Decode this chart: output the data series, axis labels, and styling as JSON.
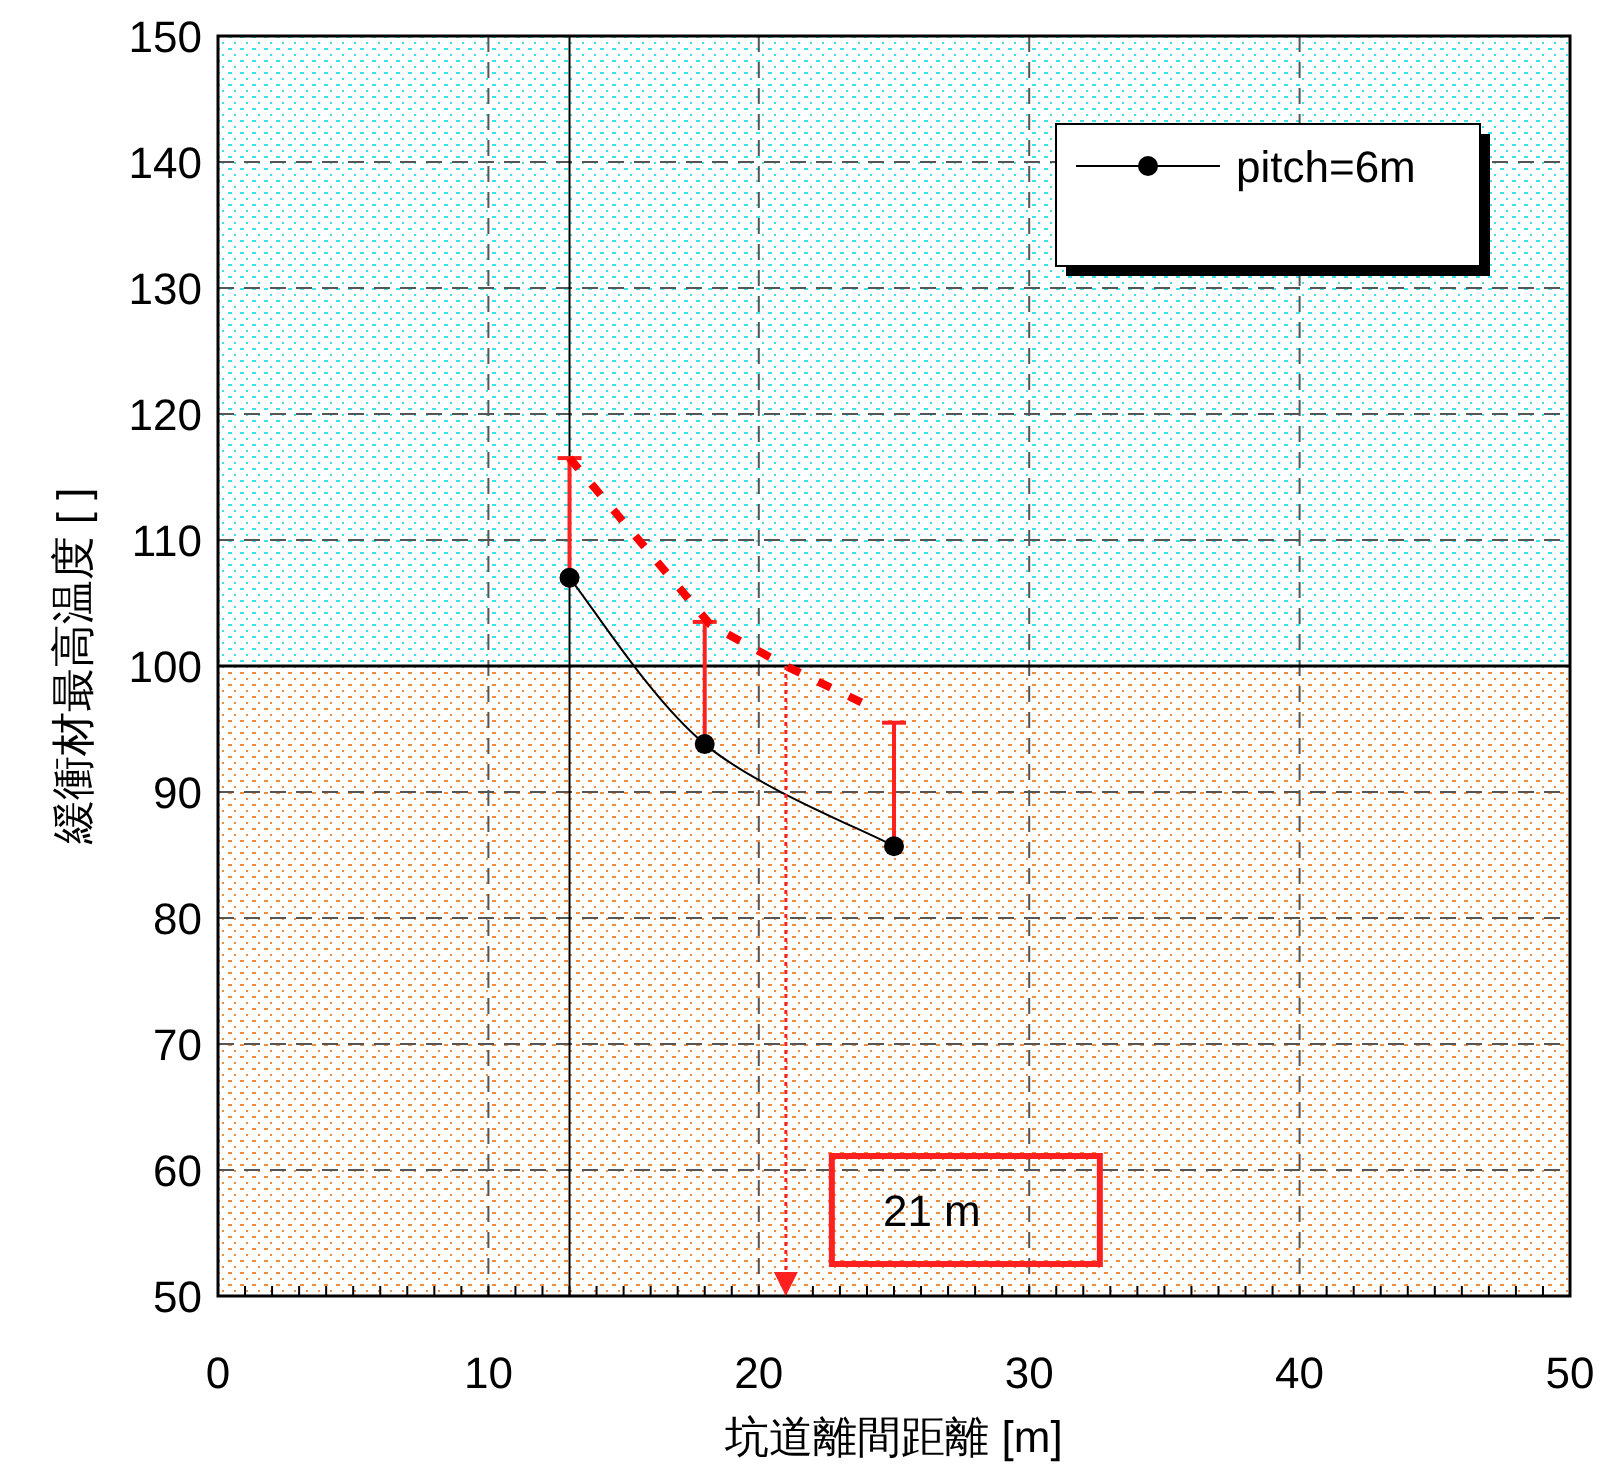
{
  "chart_data": {
    "type": "line",
    "xlabel": "坑道離間距離 [m]",
    "ylabel": "緩衝材最高温度 [ ]",
    "xlim": [
      0,
      50
    ],
    "xticks": [
      0,
      10,
      20,
      30,
      40,
      50
    ],
    "ylim": [
      50,
      150
    ],
    "yticks": [
      50,
      60,
      70,
      80,
      90,
      100,
      110,
      120,
      130,
      140,
      150
    ],
    "grid": true,
    "legend": "top right",
    "marker": "circle",
    "series": [
      {
        "name": "pitch=6m",
        "color": "#000000",
        "x": [
          13,
          18,
          25
        ],
        "values": [
          107,
          93.8,
          85.7
        ],
        "errors": [
          [
            107,
            116.5
          ],
          [
            93.8,
            103.5
          ],
          [
            85.7,
            95.5
          ]
        ],
        "line_style": "solid"
      },
      {
        "color": "#ff0000",
        "x": [
          13,
          18.2,
          21,
          24.1
        ],
        "values": [
          116.5,
          103.3,
          100,
          96.8
        ],
        "marker": "none",
        "line_style": "dashed"
      }
    ],
    "ref_lines": [
      {
        "axis": "x",
        "value": 13,
        "color": "#000000"
      },
      {
        "axis": "y",
        "value": 100,
        "color": "#000000"
      }
    ],
    "bands": [
      {
        "axis": "y",
        "from": 50,
        "to": 100,
        "color": "#f08a3c"
      },
      {
        "axis": "y",
        "from": 100,
        "to": 150,
        "color": "#3ce0e8"
      }
    ],
    "annotations": [
      {
        "text": "21 m",
        "x": 21,
        "y": 50
      }
    ]
  }
}
